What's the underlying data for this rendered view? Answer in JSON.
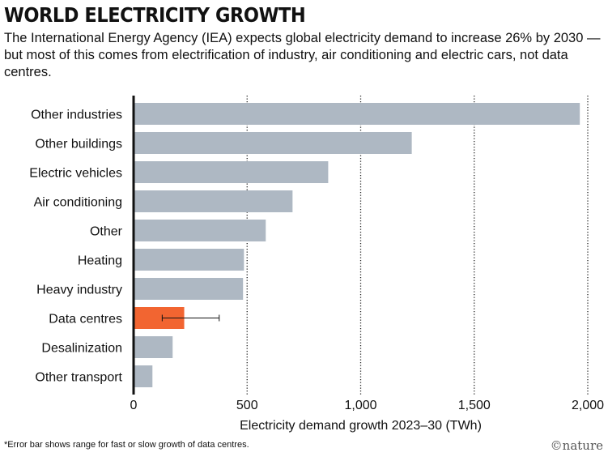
{
  "title": "WORLD ELECTRICITY GROWTH",
  "subtitle": "The International Energy Agency (IEA) expects global electricity demand to increase 26% by 2030 — but most of this comes from electrification of industry, air conditioning and electric cars, not data centres.",
  "footnote": "*Error bar shows range for fast or slow growth of data centres.",
  "logo": "©nature",
  "chart_data": {
    "type": "bar",
    "orientation": "horizontal",
    "categories": [
      "Other industries",
      "Other buildings",
      "Electric vehicles",
      "Air conditioning",
      "Other",
      "Heating",
      "Heavy industry",
      "Data centres",
      "Desalinization",
      "Other transport"
    ],
    "values": [
      1965,
      1225,
      857,
      700,
      582,
      486,
      482,
      223,
      172,
      83
    ],
    "error_bar": {
      "category": "Data centres",
      "low": 126,
      "high": 377
    },
    "highlight": {
      "category": "Data centres",
      "color": "#f26531"
    },
    "bar_color": "#aeb8c3",
    "xlabel": "Electricity demand growth 2023–30 (TWh)",
    "xlim": [
      0,
      2000
    ],
    "xticks": [
      0,
      500,
      1000,
      1500,
      2000
    ],
    "xtick_labels": [
      "0",
      "500",
      "1,000",
      "1,500",
      "2,000"
    ],
    "grid": "vertical dotted"
  }
}
